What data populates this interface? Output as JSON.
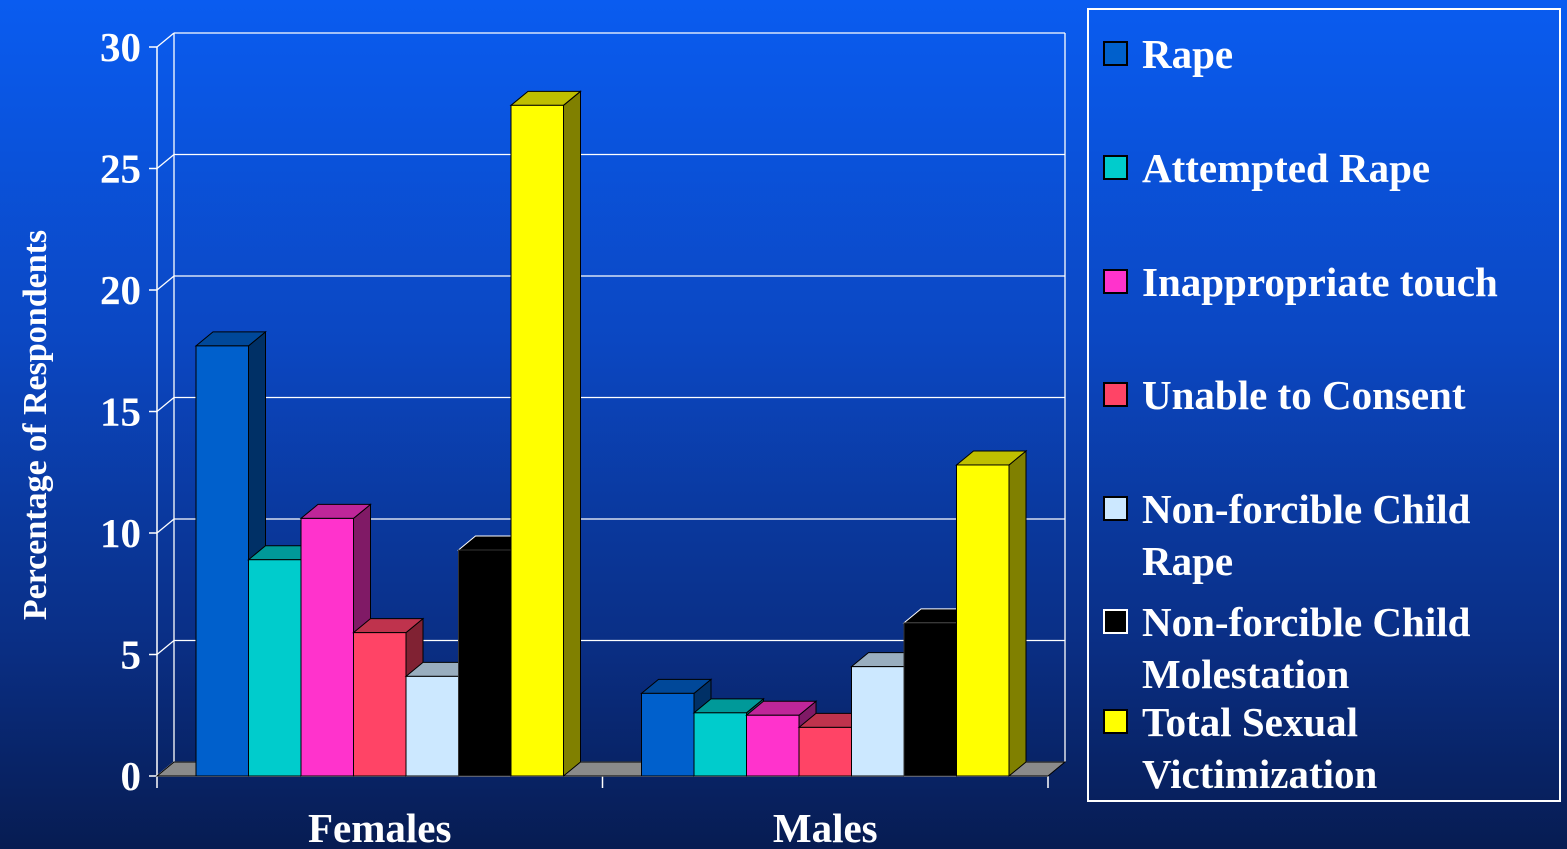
{
  "chart_data": {
    "type": "bar",
    "categories": [
      "Females",
      "Males"
    ],
    "ylabel": "Percentage of Respondents",
    "xlabel": "",
    "ylim": [
      0,
      30
    ],
    "yticks": [
      0,
      5,
      10,
      15,
      20,
      25,
      30
    ],
    "grid": true,
    "legend_position": "right",
    "series": [
      {
        "name": "Rape",
        "color": "#0060cc",
        "values": [
          17.7,
          3.4
        ]
      },
      {
        "name": "Attempted Rape",
        "color": "#00cccc",
        "values": [
          8.9,
          2.6
        ]
      },
      {
        "name": "Inappropriate touch",
        "color": "#ff33cc",
        "values": [
          10.6,
          2.5
        ]
      },
      {
        "name": "Unable to Consent",
        "color": "#ff4466",
        "values": [
          5.9,
          2.0
        ]
      },
      {
        "name": "Non-forcible Child Rape",
        "color": "#cce8ff",
        "values": [
          4.1,
          4.5
        ]
      },
      {
        "name": "Non-forcible Child Molestation",
        "color": "#000000",
        "values": [
          9.3,
          6.3
        ]
      },
      {
        "name": "Total Sexual Victimization",
        "color": "#ffff00",
        "values": [
          27.6,
          12.8
        ]
      }
    ]
  },
  "legend": {
    "items": [
      {
        "label": "Rape",
        "color": "#0060cc"
      },
      {
        "label": "Attempted Rape",
        "color": "#00cccc"
      },
      {
        "label": "Inappropriate touch",
        "color": "#ff33cc"
      },
      {
        "label": "Unable to Consent",
        "color": "#ff4466"
      },
      {
        "label": "Non-forcible Child\nRape",
        "color": "#cce8ff"
      },
      {
        "label": "Non-forcible Child\nMolestation",
        "color": "#000000"
      },
      {
        "label": "Total Sexual\nVictimization",
        "color": "#ffff00"
      }
    ]
  }
}
